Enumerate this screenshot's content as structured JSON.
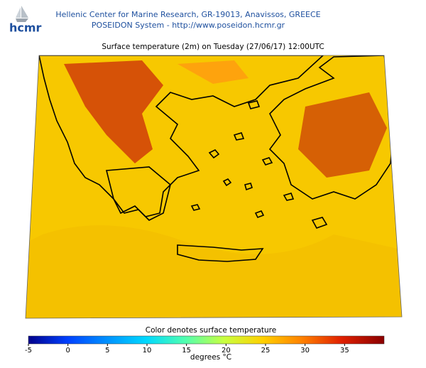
{
  "header": {
    "logo": "hcmr",
    "organization": "Hellenic Center for Marine Research, GR-19013, Anavissos, GREECE",
    "system": "POSEIDON System - http://www.poseidon.hcmr.gr"
  },
  "map": {
    "title": "Surface temperature (2m) on Tuesday (27/06/17) 12:00UTC"
  },
  "colorbar": {
    "title": "Color denotes surface temperature",
    "range": [
      -5,
      40
    ],
    "ticks": [
      -5,
      0,
      5,
      10,
      15,
      20,
      25,
      30,
      35
    ],
    "unit": "degrees °C"
  }
}
